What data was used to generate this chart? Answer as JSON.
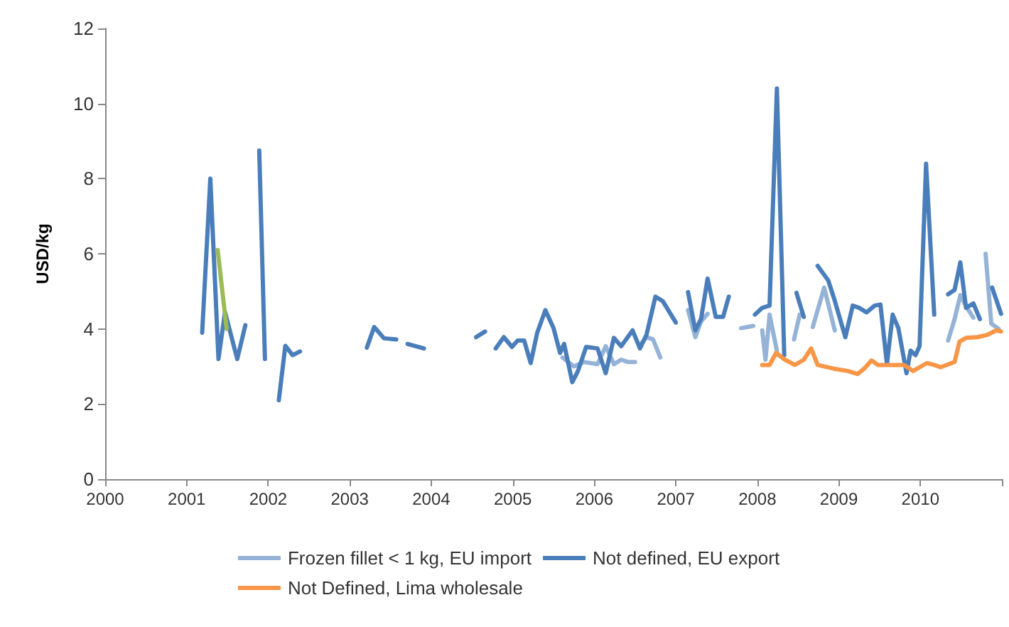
{
  "chart_data": {
    "type": "line",
    "ylabel": "USD/kg",
    "xlim": [
      2000,
      2011
    ],
    "xticks": [
      2000,
      2001,
      2002,
      2003,
      2004,
      2005,
      2006,
      2007,
      2008,
      2009,
      2010,
      {
        "value": 2011,
        "label": null
      }
    ],
    "ylim": [
      0,
      12
    ],
    "yticks": [
      0,
      2,
      4,
      6,
      8,
      10,
      12
    ],
    "grid": false,
    "legend": "bottom",
    "marker": "none",
    "line_style": "solid",
    "series": [
      {
        "name": "Frozen fillet < 1 kg, EU import",
        "color": "#95b3d7",
        "x": [
          2005.61,
          2005.75,
          2005.87,
          2006.04,
          2006.14,
          2006.24,
          2006.33,
          2006.41,
          2006.5,
          2006.52,
          2006.55,
          2006.64,
          2006.72,
          2006.81,
          2006.9,
          2007.15,
          2007.24,
          2007.31,
          2007.39,
          2007.45,
          2007.65,
          2007.72,
          2007.76,
          2007.8,
          2007.95,
          2007.98,
          2008.06,
          2008.1,
          2008.15,
          2008.24,
          2008.29,
          2008.45,
          2008.52,
          2008.6,
          2008.68,
          2008.82,
          2008.95,
          2009.0,
          2009.1,
          2009.2,
          2010.34,
          2010.42,
          2010.49,
          2010.56,
          2010.65,
          2010.73,
          2010.8,
          2010.87,
          2010.96
        ],
        "values": [
          3.24,
          3.0,
          3.12,
          3.06,
          3.54,
          3.06,
          3.18,
          3.12,
          3.12,
          null,
          3.54,
          3.78,
          3.72,
          3.24,
          null,
          4.5,
          3.78,
          4.2,
          4.4,
          null,
          null,
          null,
          null,
          4.02,
          4.08,
          null,
          3.96,
          3.18,
          4.38,
          3.42,
          null,
          3.72,
          4.38,
          null,
          4.05,
          5.1,
          3.96,
          null,
          null,
          null,
          3.69,
          4.26,
          4.9,
          4.6,
          4.3,
          null,
          6.0,
          4.14,
          4.0
        ]
      },
      {
        "name": "Not defined, EU export",
        "color": "#4a7ebb",
        "x": [
          2001.19,
          2001.29,
          2001.39,
          2001.47,
          2001.62,
          2001.72,
          2001.8,
          2001.89,
          2001.96,
          2002.05,
          2002.13,
          2002.21,
          2002.3,
          2002.39,
          2002.8,
          2003.21,
          2003.3,
          2003.42,
          2003.57,
          2003.64,
          2003.71,
          2003.91,
          2004.2,
          2004.55,
          2004.66,
          2004.72,
          2004.79,
          2004.89,
          2004.99,
          2005.06,
          2005.14,
          2005.22,
          2005.3,
          2005.4,
          2005.5,
          2005.58,
          2005.63,
          2005.73,
          2005.8,
          2005.9,
          2006.04,
          2006.14,
          2006.24,
          2006.33,
          2006.47,
          2006.56,
          2006.64,
          2006.75,
          2006.84,
          2007.0,
          2007.08,
          2007.15,
          2007.24,
          2007.31,
          2007.39,
          2007.49,
          2007.58,
          2007.65,
          2007.8,
          2007.97,
          2008.06,
          2008.15,
          2008.24,
          2008.33,
          2008.4,
          2008.48,
          2008.57,
          2008.65,
          2008.74,
          2008.87,
          2008.95,
          2009.08,
          2009.17,
          2009.25,
          2009.34,
          2009.44,
          2009.51,
          2009.59,
          2009.66,
          2009.73,
          2009.83,
          2009.88,
          2009.94,
          2009.99,
          2010.07,
          2010.17,
          2010.25,
          2010.34,
          2010.42,
          2010.49,
          2010.56,
          2010.65,
          2010.73,
          2010.8,
          2010.88,
          2010.99
        ],
        "values": [
          3.9,
          8.0,
          3.2,
          4.45,
          3.2,
          4.1,
          null,
          8.75,
          3.2,
          null,
          2.1,
          3.55,
          3.3,
          3.4,
          null,
          3.5,
          4.05,
          3.75,
          3.72,
          null,
          3.6,
          3.48,
          null,
          3.78,
          3.93,
          null,
          3.48,
          3.78,
          3.52,
          3.69,
          3.69,
          3.09,
          3.9,
          4.5,
          4.02,
          3.36,
          3.6,
          2.58,
          2.88,
          3.52,
          3.48,
          2.82,
          3.76,
          3.54,
          3.96,
          3.48,
          3.84,
          4.86,
          4.74,
          4.17,
          null,
          4.98,
          3.96,
          4.27,
          5.34,
          4.32,
          4.32,
          4.86,
          null,
          4.38,
          4.56,
          4.62,
          10.4,
          3.3,
          null,
          4.96,
          4.32,
          null,
          5.68,
          5.29,
          4.75,
          3.78,
          4.62,
          4.56,
          4.44,
          4.62,
          4.65,
          3.06,
          4.38,
          4.02,
          2.82,
          3.42,
          3.3,
          3.54,
          8.4,
          4.38,
          null,
          4.92,
          5.04,
          5.77,
          4.56,
          4.68,
          4.26,
          null,
          5.1,
          4.4
        ]
      },
      {
        "name": "Not Defined, Lima wholesale",
        "color": "#f79646",
        "x": [
          2008.06,
          2008.15,
          2008.23,
          2008.34,
          2008.46,
          2008.57,
          2008.66,
          2008.74,
          2008.94,
          2009.11,
          2009.23,
          2009.31,
          2009.4,
          2009.48,
          2009.8,
          2009.91,
          2010.08,
          2010.17,
          2010.25,
          2010.42,
          2010.48,
          2010.56,
          2010.7,
          2010.82,
          2010.93,
          2010.99
        ],
        "values": [
          3.04,
          3.04,
          3.36,
          3.18,
          3.04,
          3.18,
          3.48,
          3.04,
          2.94,
          2.88,
          2.8,
          2.94,
          3.16,
          3.04,
          3.04,
          2.88,
          3.09,
          3.04,
          2.98,
          3.12,
          3.66,
          3.76,
          3.78,
          3.84,
          3.96,
          3.93
        ]
      },
      {
        "color": "#9bbb59",
        "x": [
          2001.38,
          2001.49
        ],
        "values": [
          6.1,
          4.0
        ]
      }
    ]
  }
}
